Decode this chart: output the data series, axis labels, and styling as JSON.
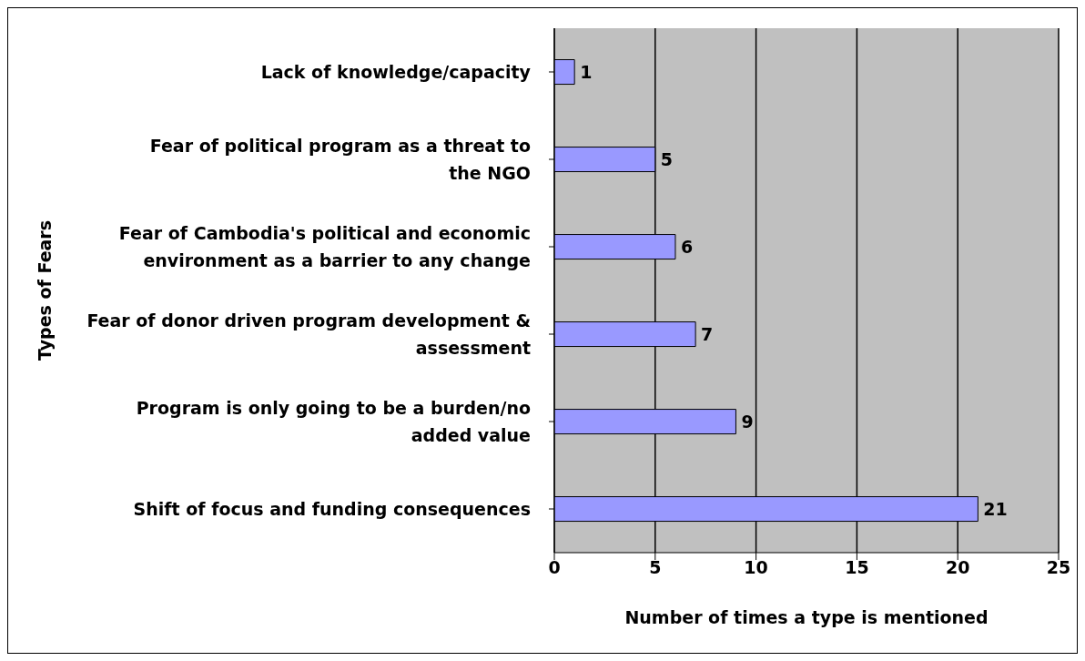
{
  "chart_data": {
    "type": "bar",
    "orientation": "horizontal",
    "xlabel": "Number of times a type is mentioned",
    "ylabel": "Types of Fears",
    "categories": [
      "Lack of knowledge/capacity",
      "Fear of political program as a threat to the NGO",
      "Fear of Cambodia's political and economic environment as a barrier to any change",
      "Fear of donor driven program development & assessment",
      "Program is only going to be a burden/no added value",
      "Shift of focus and funding consequences"
    ],
    "values": [
      1,
      5,
      6,
      7,
      9,
      21
    ],
    "color": "#9999ff",
    "xlim": [
      0,
      25
    ],
    "xticks": [
      0,
      5,
      10,
      15,
      20,
      25
    ],
    "grid": "x",
    "data_labels": true,
    "legend": false
  }
}
